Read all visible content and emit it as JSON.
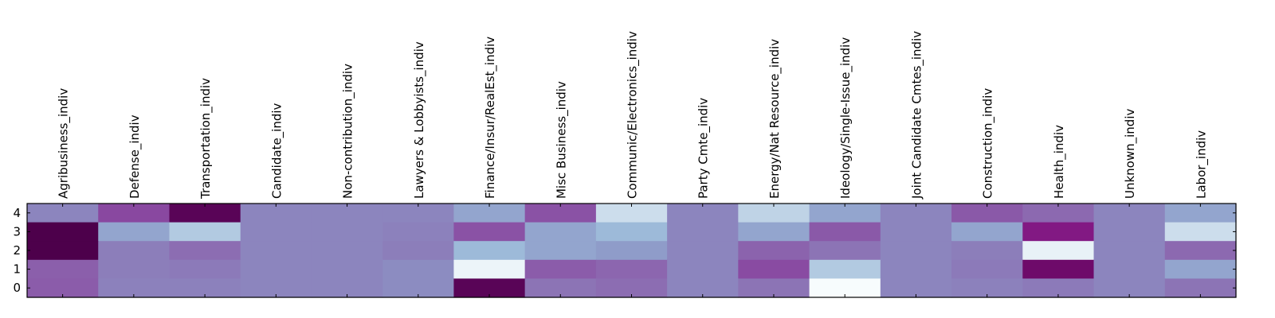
{
  "chart_data": {
    "type": "heatmap",
    "title": "",
    "xlabel": "",
    "ylabel": "",
    "x_axis_position": "top",
    "colormap": "BuPu",
    "value_range": [
      0,
      1
    ],
    "categories": [
      "Agribusiness_indiv",
      "Defense_indiv",
      "Transportation_indiv",
      "Candidate_indiv",
      "Non-contribution_indiv",
      "Lawyers & Lobbyists_indiv",
      "Finance/Insur/RealEst_indiv",
      "Misc Business_indiv",
      "Communic/Electronics_indiv",
      "Party Cmte_indiv",
      "Energy/Nat Resource_indiv",
      "Ideology/Single-Issue_indiv",
      "Joint Candidate Cmtes_indiv",
      "Construction_indiv",
      "Health_indiv",
      "Unknown_indiv",
      "Labor_indiv"
    ],
    "rows": [
      "4",
      "3",
      "2",
      "1",
      "0"
    ],
    "values": [
      [
        0.55,
        0.73,
        0.97,
        0.55,
        0.55,
        0.55,
        0.45,
        0.7,
        0.2,
        0.55,
        0.25,
        0.45,
        0.55,
        0.68,
        0.63,
        0.55,
        0.45
      ],
      [
        1.0,
        0.45,
        0.3,
        0.55,
        0.55,
        0.56,
        0.7,
        0.45,
        0.38,
        0.55,
        0.45,
        0.68,
        0.55,
        0.45,
        0.85,
        0.55,
        0.2
      ],
      [
        1.0,
        0.57,
        0.62,
        0.55,
        0.55,
        0.57,
        0.38,
        0.45,
        0.48,
        0.55,
        0.65,
        0.6,
        0.55,
        0.57,
        0.08,
        0.55,
        0.63
      ],
      [
        0.66,
        0.57,
        0.58,
        0.55,
        0.55,
        0.53,
        0.06,
        0.67,
        0.64,
        0.55,
        0.72,
        0.3,
        0.55,
        0.58,
        0.92,
        0.55,
        0.45
      ],
      [
        0.67,
        0.56,
        0.56,
        0.55,
        0.55,
        0.53,
        0.97,
        0.6,
        0.62,
        0.55,
        0.6,
        0.0,
        0.55,
        0.56,
        0.58,
        0.55,
        0.6
      ]
    ]
  }
}
